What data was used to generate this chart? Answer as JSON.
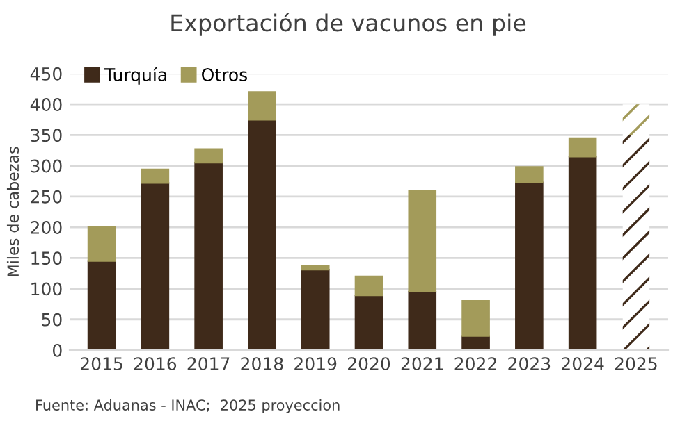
{
  "chart_data": {
    "type": "bar",
    "title": "Exportación de vacunos en pie",
    "ylabel": "Miles de cabezas",
    "categories": [
      "2015",
      "2016",
      "2017",
      "2018",
      "2019",
      "2020",
      "2021",
      "2022",
      "2023",
      "2024",
      "2025"
    ],
    "stacked": true,
    "series": [
      {
        "name": "Turquía",
        "color": "#3f2a1a",
        "colors": [
          "#3f2a1a",
          "#3f2a1a",
          "#3f2a1a",
          "#3f2a1a",
          "#3f2a1a",
          "#3f2a1a",
          "#3f2a1a",
          "#3f2a1a",
          "#3f2a1a",
          "#3f2a1a",
          "#ffffff"
        ],
        "values": [
          145,
          272,
          305,
          375,
          131,
          89,
          95,
          23,
          273,
          315,
          350
        ]
      },
      {
        "name": "Otros",
        "color": "#a39b5a",
        "colors": [
          "#a39b5a",
          "#a39b5a",
          "#a39b5a",
          "#a39b5a",
          "#a39b5a",
          "#a39b5a",
          "#a39b5a",
          "#a39b5a",
          "#a39b5a",
          "#a39b5a",
          "#ffffff"
        ],
        "values": [
          55,
          22,
          22,
          45,
          6,
          31,
          165,
          57,
          25,
          30,
          50
        ]
      }
    ],
    "ylim": [
      0,
      450
    ],
    "yticks": [
      0,
      50,
      100,
      150,
      200,
      250,
      300,
      350,
      400,
      450
    ],
    "grid": "y",
    "legend": "top left",
    "annotations": [
      "Fuente: Aduanas - INAC;  2025 proyeccion"
    ]
  }
}
